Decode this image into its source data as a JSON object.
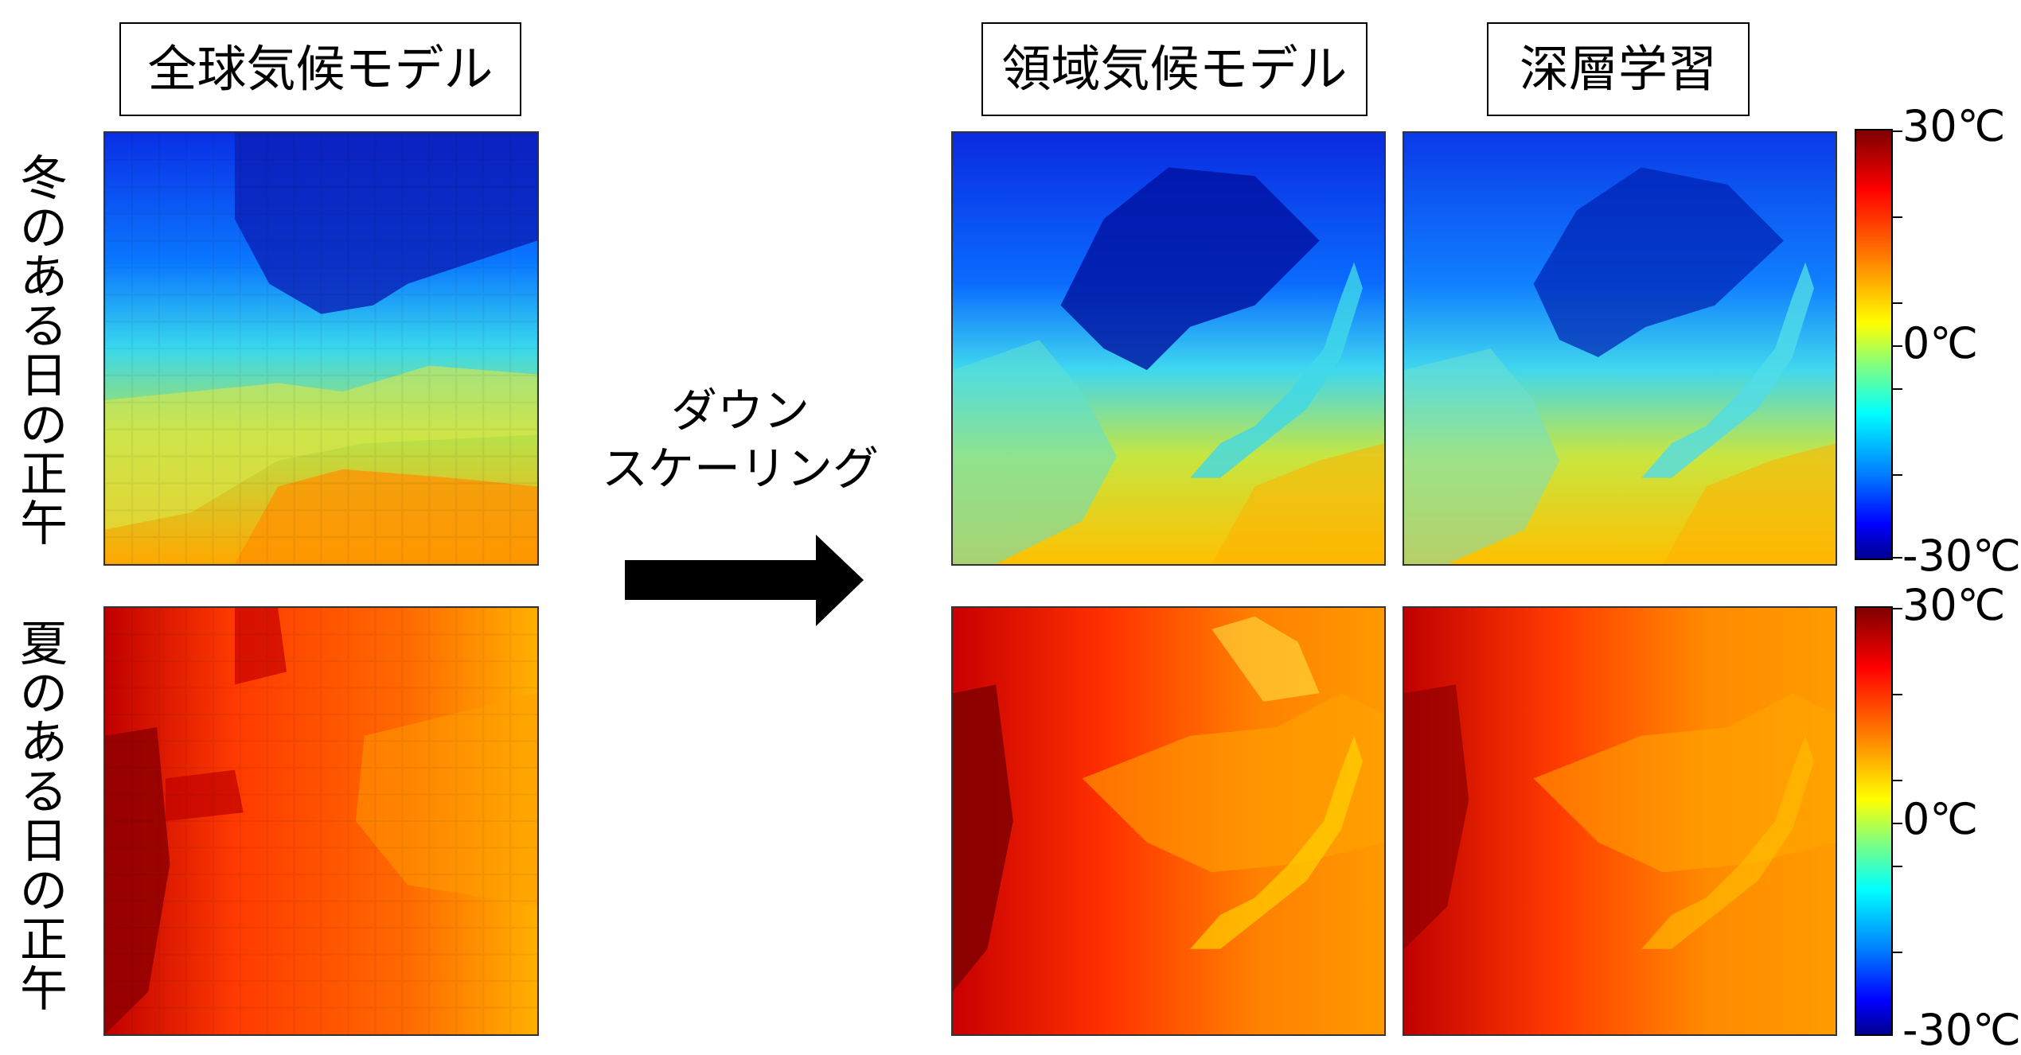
{
  "headers": {
    "gcm": "全球気候モデル",
    "rcm": "領域気候モデル",
    "dl": "深層学習"
  },
  "rows": {
    "winter": [
      "冬",
      "の",
      "あ",
      "る",
      "日",
      "の",
      "正",
      "午"
    ],
    "summer": [
      "夏",
      "の",
      "あ",
      "る",
      "日",
      "の",
      "正",
      "午"
    ]
  },
  "arrow": {
    "line1": "ダウン",
    "line2": "スケーリング"
  },
  "colorbar_winter": {
    "top": "30℃",
    "mid": "0℃",
    "bottom": "-30℃"
  },
  "colorbar_summer": {
    "top": "30℃",
    "mid": "0℃",
    "bottom": "-30℃"
  }
}
